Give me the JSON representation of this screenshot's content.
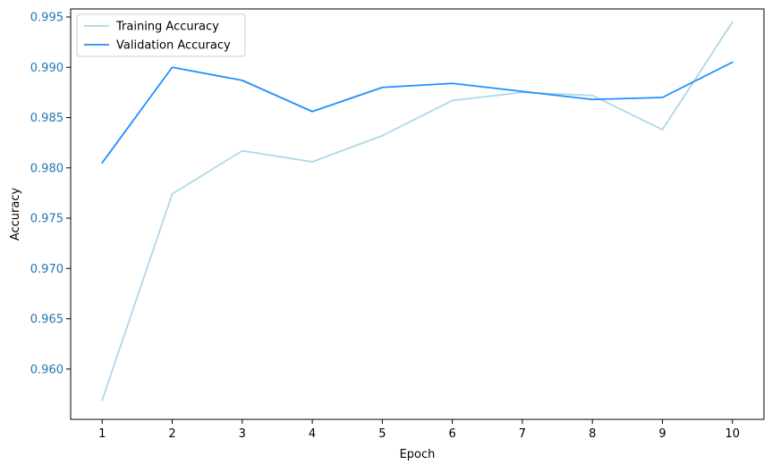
{
  "chart_data": {
    "type": "line",
    "title": "",
    "xlabel": "Epoch",
    "ylabel": "Accuracy",
    "x": [
      1,
      2,
      3,
      4,
      5,
      6,
      7,
      8,
      9,
      10
    ],
    "xticks": [
      "1",
      "2",
      "3",
      "4",
      "5",
      "6",
      "7",
      "8",
      "9",
      "10"
    ],
    "yticks": [
      "0.960",
      "0.965",
      "0.970",
      "0.975",
      "0.980",
      "0.985",
      "0.990",
      "0.995"
    ],
    "xlim": [
      0.55,
      10.45
    ],
    "ylim": [
      0.955,
      0.9958
    ],
    "grid": false,
    "legend_position": "top-left",
    "ytick_label_color": "#1f77b4",
    "series": [
      {
        "name": "Training Accuracy",
        "color": "#add8e6",
        "values": [
          0.9569,
          0.9774,
          0.9817,
          0.9806,
          0.9832,
          0.9867,
          0.9875,
          0.9872,
          0.9838,
          0.9945
        ]
      },
      {
        "name": "Validation Accuracy",
        "color": "#1e90ff",
        "values": [
          0.9805,
          0.99,
          0.9887,
          0.9856,
          0.988,
          0.9884,
          0.9876,
          0.9868,
          0.987,
          0.9905
        ]
      }
    ]
  }
}
